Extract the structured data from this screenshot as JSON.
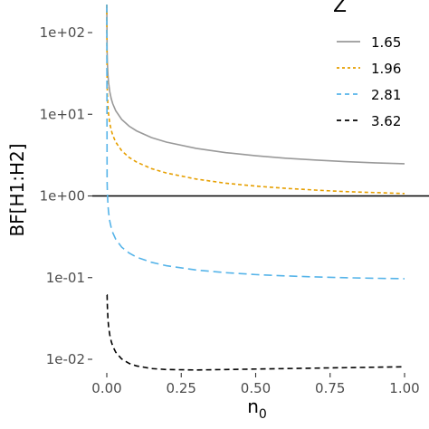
{
  "chart_data": {
    "type": "line",
    "xlabel": "n",
    "xlabel_subscript": "0",
    "ylabel": "BF[H1:H2]",
    "y_scale": "log10",
    "xlim": [
      0,
      1
    ],
    "ylim": [
      0.0085,
      200
    ],
    "x_ticks": [
      0,
      0.25,
      0.5,
      0.75,
      1
    ],
    "x_tick_labels": [
      "0.00",
      "0.25",
      "0.50",
      "0.75",
      "1.00"
    ],
    "y_ticks": [
      0.01,
      0.1,
      1,
      10,
      100
    ],
    "y_tick_labels": [
      "1e-02",
      "1e-01",
      "1e+00",
      "1e+01",
      "1e+02"
    ],
    "reference_line": 1,
    "legend": {
      "title": "Z",
      "placement": "top-right"
    },
    "x": [
      0.001,
      0.002,
      0.004,
      0.006,
      0.01,
      0.015,
      0.02,
      0.03,
      0.05,
      0.075,
      0.1,
      0.15,
      0.2,
      0.3,
      0.4,
      0.5,
      0.6,
      0.7,
      0.8,
      0.9,
      1.0
    ],
    "series": [
      {
        "name": "1.65",
        "color": "#999999",
        "dash": "solid",
        "values": [
          59.31,
          41.97,
          29.72,
          24.29,
          18.87,
          15.47,
          13.45,
          11.05,
          8.65,
          7.15,
          6.26,
          5.19,
          4.56,
          3.82,
          3.39,
          3.11,
          2.9,
          2.75,
          2.63,
          2.54,
          2.48
        ]
      },
      {
        "name": "1.96",
        "color": "#E69F00",
        "dash": "4,3",
        "values": [
          24.36,
          17.25,
          12.21,
          9.99,
          7.76,
          6.37,
          5.54,
          4.56,
          3.58,
          2.96,
          2.6,
          2.16,
          1.91,
          1.61,
          1.43,
          1.32,
          1.24,
          1.18,
          1.13,
          1.1,
          1.07
        ]
      },
      {
        "name": "2.81",
        "color": "#56B4E9",
        "dash": "9,5",
        "values": [
          1.52,
          1.08,
          0.768,
          0.629,
          0.492,
          0.406,
          0.355,
          0.295,
          0.236,
          0.2,
          0.178,
          0.154,
          0.14,
          0.124,
          0.115,
          0.109,
          0.105,
          0.102,
          0.0998,
          0.0982,
          0.097
        ]
      },
      {
        "name": "3.62",
        "color": "#000000",
        "dash": "6,4",
        "values": [
          0.0612,
          0.0434,
          0.0308,
          0.0253,
          0.0199,
          0.0165,
          0.0145,
          0.0122,
          0.0101,
          0.0089,
          0.0083,
          0.0077,
          0.0075,
          0.0074,
          0.0075,
          0.0076,
          0.0077,
          0.0078,
          0.0079,
          0.008,
          0.0081
        ]
      }
    ]
  }
}
